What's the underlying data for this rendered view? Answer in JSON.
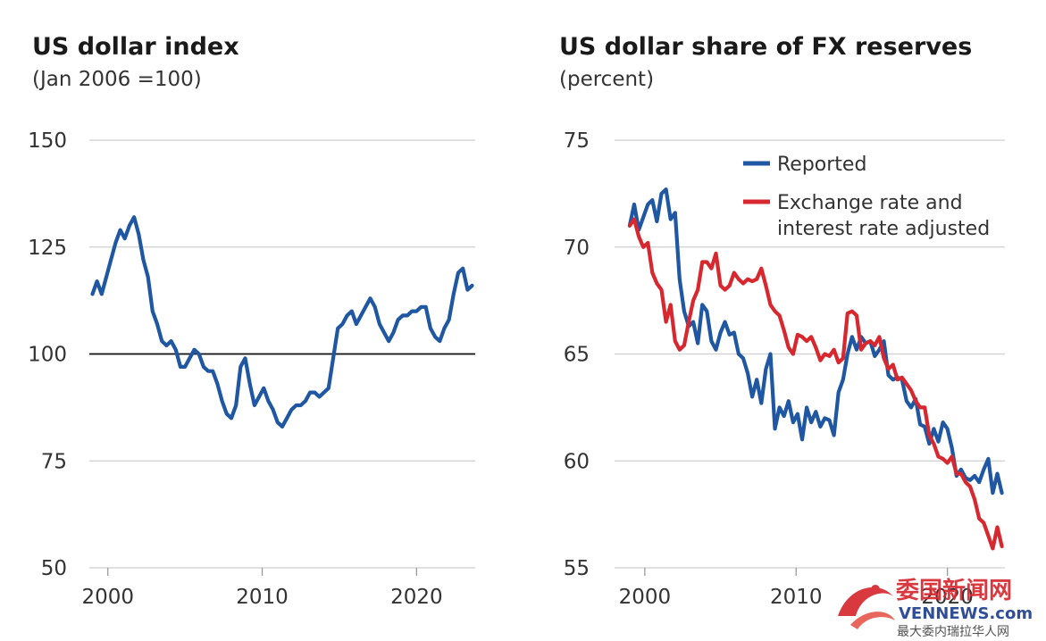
{
  "chart_data": [
    {
      "type": "line",
      "title": "US dollar index",
      "subtitle": "(Jan 2006 =100)",
      "xlim": [
        1998.8,
        2023.8
      ],
      "ylim": [
        50,
        150
      ],
      "yticks": [
        50,
        75,
        100,
        125,
        150
      ],
      "xticks": [
        2000,
        2010,
        2020
      ],
      "reference_line": 100,
      "series": [
        {
          "name": "US dollar index",
          "color": "#1f57a3",
          "x": [
            1999.0,
            1999.3,
            1999.6,
            1999.9,
            2000.2,
            2000.5,
            2000.8,
            2001.1,
            2001.4,
            2001.7,
            2002.0,
            2002.3,
            2002.6,
            2002.9,
            2003.2,
            2003.5,
            2003.8,
            2004.1,
            2004.4,
            2004.7,
            2005.0,
            2005.3,
            2005.6,
            2005.9,
            2006.2,
            2006.5,
            2006.8,
            2007.1,
            2007.4,
            2007.7,
            2008.0,
            2008.3,
            2008.6,
            2008.9,
            2009.2,
            2009.5,
            2009.8,
            2010.1,
            2010.4,
            2010.7,
            2011.0,
            2011.3,
            2011.6,
            2011.9,
            2012.2,
            2012.5,
            2012.8,
            2013.1,
            2013.4,
            2013.7,
            2014.0,
            2014.3,
            2014.6,
            2014.9,
            2015.2,
            2015.5,
            2015.8,
            2016.1,
            2016.4,
            2016.7,
            2017.0,
            2017.3,
            2017.6,
            2017.9,
            2018.2,
            2018.5,
            2018.8,
            2019.1,
            2019.4,
            2019.7,
            2020.0,
            2020.3,
            2020.6,
            2020.9,
            2021.2,
            2021.5,
            2021.8,
            2022.1,
            2022.4,
            2022.7,
            2023.0,
            2023.3,
            2023.6
          ],
          "values": [
            114,
            117,
            114,
            118,
            122,
            126,
            129,
            127,
            130,
            132,
            128,
            122,
            118,
            110,
            107,
            103,
            102,
            103,
            101,
            97,
            97,
            99,
            101,
            100,
            97,
            96,
            96,
            93,
            89,
            86,
            85,
            88,
            97,
            99,
            93,
            88,
            90,
            92,
            89,
            87,
            84,
            83,
            85,
            87,
            88,
            88,
            89,
            91,
            91,
            90,
            91,
            92,
            99,
            106,
            107,
            109,
            110,
            107,
            109,
            111,
            113,
            111,
            107,
            105,
            103,
            105,
            108,
            109,
            109,
            110,
            110,
            111,
            111,
            106,
            104,
            103,
            106,
            108,
            114,
            119,
            120,
            115,
            116
          ]
        }
      ]
    },
    {
      "type": "line",
      "title": "US dollar share of FX reserves",
      "subtitle": "(percent)",
      "xlim": [
        1998.0,
        2023.8
      ],
      "ylim": [
        55,
        75
      ],
      "yticks": [
        55,
        60,
        65,
        70,
        75
      ],
      "xticks": [
        2000,
        2010,
        2020
      ],
      "legend_position": "top-right",
      "series": [
        {
          "name": "Reported",
          "color": "#1f57a3",
          "x": [
            1999.0,
            1999.3,
            1999.6,
            1999.9,
            2000.2,
            2000.5,
            2000.8,
            2001.1,
            2001.4,
            2001.7,
            2002.0,
            2002.3,
            2002.6,
            2002.9,
            2003.2,
            2003.5,
            2003.8,
            2004.1,
            2004.4,
            2004.7,
            2005.0,
            2005.3,
            2005.6,
            2005.9,
            2006.2,
            2006.5,
            2006.8,
            2007.1,
            2007.4,
            2007.7,
            2008.0,
            2008.3,
            2008.6,
            2008.9,
            2009.2,
            2009.5,
            2009.8,
            2010.1,
            2010.4,
            2010.7,
            2011.0,
            2011.3,
            2011.6,
            2011.9,
            2012.2,
            2012.5,
            2012.8,
            2013.1,
            2013.4,
            2013.7,
            2014.0,
            2014.3,
            2014.6,
            2014.9,
            2015.2,
            2015.5,
            2015.8,
            2016.1,
            2016.4,
            2016.7,
            2017.0,
            2017.3,
            2017.6,
            2017.9,
            2018.2,
            2018.5,
            2018.8,
            2019.1,
            2019.4,
            2019.7,
            2020.0,
            2020.3,
            2020.6,
            2020.9,
            2021.2,
            2021.5,
            2021.8,
            2022.1,
            2022.4,
            2022.7,
            2023.0,
            2023.3,
            2023.6
          ],
          "values": [
            71,
            72,
            70.8,
            71.4,
            72,
            72.2,
            71.2,
            72.5,
            72.7,
            71.3,
            71.6,
            68.5,
            67,
            66.3,
            66.5,
            65.5,
            67.3,
            67,
            65.6,
            65.2,
            66,
            66.5,
            65.9,
            66,
            65,
            64.8,
            64.1,
            63,
            63.8,
            62.7,
            64.3,
            65,
            61.5,
            62.5,
            62.1,
            62.8,
            61.8,
            62.2,
            61,
            62.5,
            61.8,
            62.3,
            61.6,
            62,
            61.9,
            61.2,
            63.2,
            63.8,
            65,
            65.8,
            65.2,
            65.8,
            65.5,
            65.6,
            64.9,
            65.2,
            65.6,
            64,
            63.8,
            63.9,
            63.8,
            62.8,
            62.5,
            62.9,
            61.7,
            61.6,
            60.8,
            61.5,
            60.9,
            61.8,
            61.5,
            60.6,
            59.3,
            59.6,
            59.2,
            59.1,
            59.3,
            59,
            59.6,
            60.1,
            58.5,
            59.4,
            58.5
          ]
        },
        {
          "name": "Exchange rate and interest rate adjusted",
          "color": "#d7282f",
          "x": [
            1999.0,
            1999.3,
            1999.6,
            1999.9,
            2000.2,
            2000.5,
            2000.8,
            2001.1,
            2001.4,
            2001.7,
            2002.0,
            2002.3,
            2002.6,
            2002.9,
            2003.2,
            2003.5,
            2003.8,
            2004.1,
            2004.4,
            2004.7,
            2005.0,
            2005.3,
            2005.6,
            2005.9,
            2006.2,
            2006.5,
            2006.8,
            2007.1,
            2007.4,
            2007.7,
            2008.0,
            2008.3,
            2008.6,
            2008.9,
            2009.2,
            2009.5,
            2009.8,
            2010.1,
            2010.4,
            2010.7,
            2011.0,
            2011.3,
            2011.6,
            2011.9,
            2012.2,
            2012.5,
            2012.8,
            2013.1,
            2013.4,
            2013.7,
            2014.0,
            2014.3,
            2014.6,
            2014.9,
            2015.2,
            2015.5,
            2015.8,
            2016.1,
            2016.4,
            2016.7,
            2017.0,
            2017.3,
            2017.6,
            2017.9,
            2018.2,
            2018.5,
            2018.8,
            2019.1,
            2019.4,
            2019.7,
            2020.0,
            2020.3,
            2020.6,
            2020.9,
            2021.2,
            2021.5,
            2021.8,
            2022.1,
            2022.4,
            2022.7,
            2023.0,
            2023.3,
            2023.6
          ],
          "values": [
            71,
            71.3,
            70.5,
            70,
            70.2,
            68.8,
            68.3,
            68,
            66.5,
            67.3,
            65.6,
            65.2,
            65.4,
            66.5,
            67.5,
            68,
            69.3,
            69.3,
            69,
            69.7,
            68.2,
            68,
            68.2,
            68.8,
            68.5,
            68.3,
            68.5,
            68.4,
            68.5,
            69,
            68.2,
            67.3,
            67,
            66.8,
            66.1,
            65.3,
            65,
            65.9,
            65.8,
            65.6,
            65.8,
            65.3,
            64.7,
            65,
            64.9,
            65.2,
            64.6,
            64.8,
            66.9,
            67,
            66.8,
            65.2,
            65.5,
            65.6,
            65.4,
            65.8,
            64.8,
            64.3,
            64.5,
            63.8,
            63.9,
            63.6,
            63.3,
            62.8,
            62.5,
            62.5,
            61.2,
            60.8,
            60.2,
            60.1,
            59.9,
            60.2,
            59.4,
            59.4,
            59,
            58.8,
            58.2,
            57.3,
            57.1,
            56.5,
            55.9,
            56.9,
            56
          ]
        }
      ]
    }
  ],
  "legend": {
    "reported": "Reported",
    "adjusted_line1": "Exchange rate and",
    "adjusted_line2": "interest rate adjusted"
  },
  "watermark": {
    "cn_title": "委国新闻网",
    "en": "VENNEWS.com",
    "cn_sub": "最大委内瑞拉华人网"
  }
}
